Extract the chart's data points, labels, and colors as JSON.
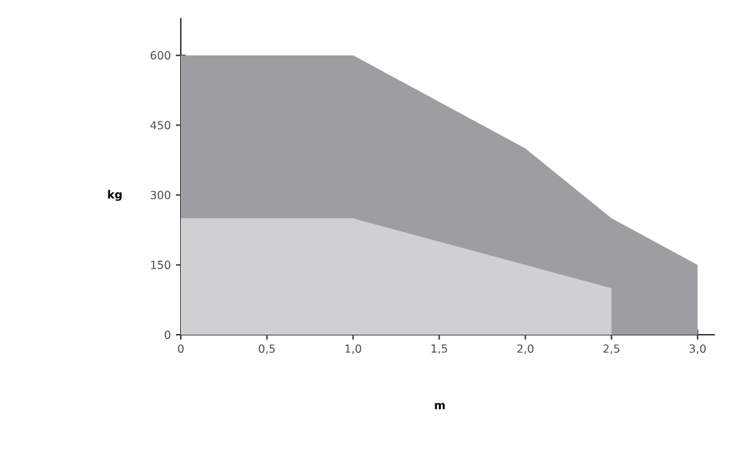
{
  "chart_data": {
    "type": "area",
    "xlabel": "m",
    "ylabel": "kg",
    "xlim": [
      0,
      3.1
    ],
    "ylim": [
      0,
      680
    ],
    "xticks": [
      0,
      {
        "value": 0.5,
        "label": "0,5"
      },
      {
        "value": 1.0,
        "label": "1,0"
      },
      {
        "value": 1.5,
        "label": "1,5"
      },
      {
        "value": 2.0,
        "label": "2,0"
      },
      {
        "value": 2.5,
        "label": "2,5"
      },
      {
        "value": 3.0,
        "label": "3,0"
      }
    ],
    "yticks": [
      0,
      150,
      300,
      450,
      600
    ],
    "grid": false,
    "series": [
      {
        "color": "#9d9ea1",
        "x": [
          0,
          1.0,
          2.0,
          2.5,
          3.0
        ],
        "values": [
          600,
          600,
          400,
          250,
          150
        ]
      },
      {
        "color": "#cfd0d2",
        "x": [
          0,
          1.0,
          2.5
        ],
        "values": [
          250,
          250,
          100
        ]
      }
    ]
  }
}
